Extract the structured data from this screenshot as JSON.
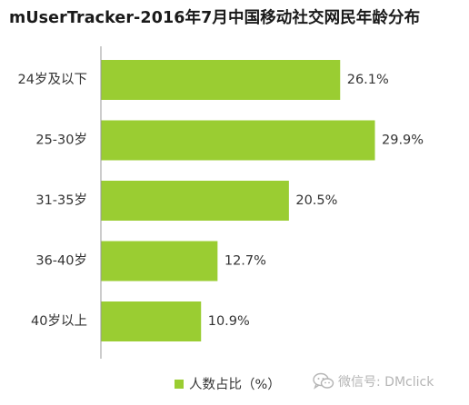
{
  "chart_data": {
    "type": "bar",
    "orientation": "horizontal",
    "title": "mUserTracker-2016年7月中国移动社交网民年龄分布",
    "categories": [
      "24岁及以下",
      "25-30岁",
      "31-35岁",
      "36-40岁",
      "40岁以上"
    ],
    "series": [
      {
        "name": "人数占比（%）",
        "values": [
          26.1,
          29.9,
          20.5,
          12.7,
          10.9
        ],
        "labels": [
          "26.1%",
          "29.9%",
          "20.5%",
          "12.7%",
          "10.9%"
        ]
      }
    ],
    "xlim": [
      0,
      29.9
    ],
    "grid": false,
    "legend": "bottom-center",
    "bar_color": "#9acd32",
    "axis_color": "#9a9a9a"
  },
  "watermark": {
    "icon": "wechat-icon",
    "text": "微信号: DMclick"
  }
}
